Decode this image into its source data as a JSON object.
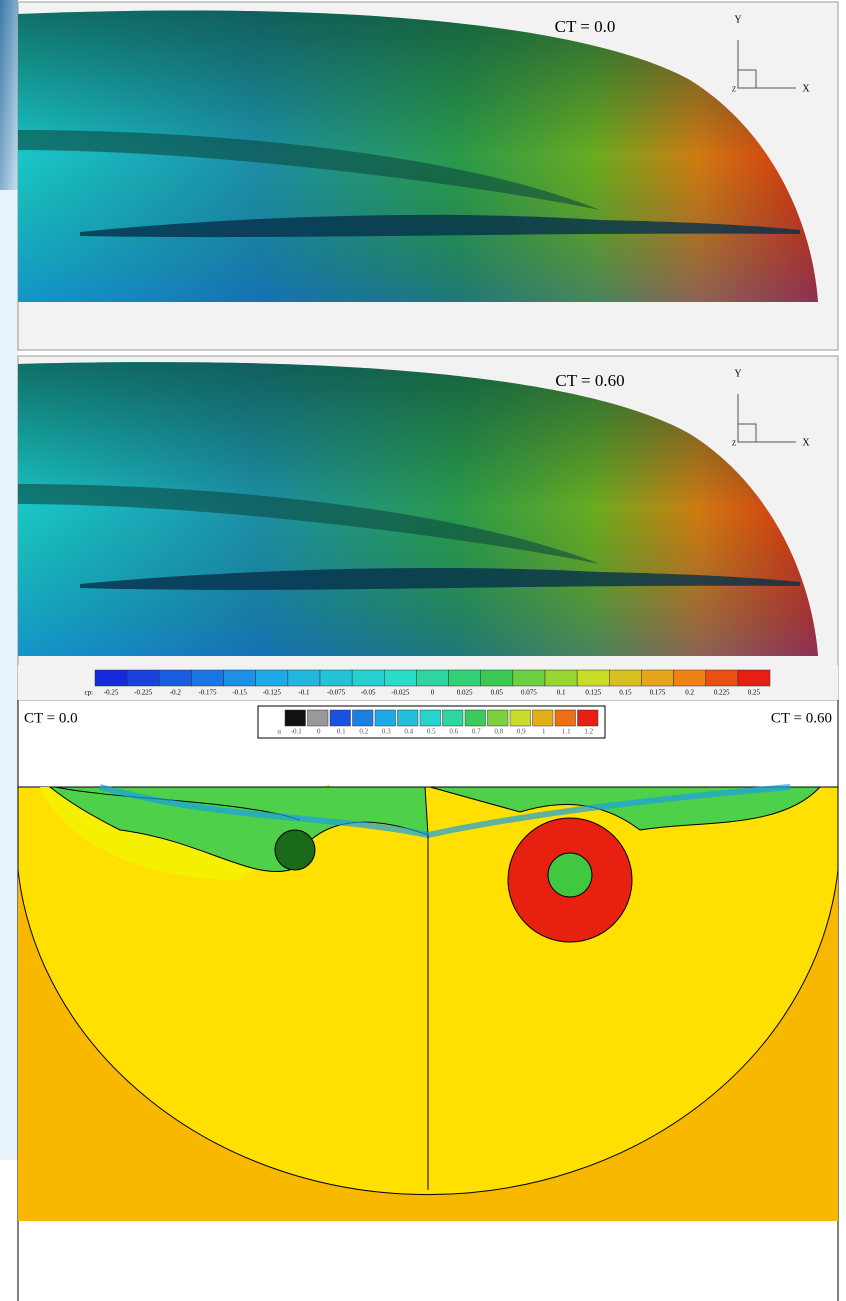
{
  "panels": [
    {
      "label": "CT = 0.0",
      "axes": {
        "y": "Y",
        "x": "X",
        "z": "Z"
      }
    },
    {
      "label": "CT = 0.60",
      "axes": {
        "y": "Y",
        "x": "X",
        "z": "Z"
      }
    }
  ],
  "cp_legend": {
    "name": "cp:",
    "ticks": [
      "-0.25",
      "-0.225",
      "-0.2",
      "-0.175",
      "-0.15",
      "-0.125",
      "-0.1",
      "-0.075",
      "-0.05",
      "-0.025",
      "0",
      "0.025",
      "0.05",
      "0.075",
      "0.1",
      "0.125",
      "0.15",
      "0.175",
      "0.2",
      "0.225",
      "0.25"
    ]
  },
  "alpha_legend": {
    "name": "α",
    "ticks": [
      "-0.1",
      "0",
      "0.1",
      "0.2",
      "0.3",
      "0.4",
      "0.5",
      "0.6",
      "0.7",
      "0.8",
      "0.9",
      "1",
      "1.1",
      "1.2"
    ]
  },
  "compare": {
    "left": "CT = 0.0",
    "right": "CT = 0.60"
  }
}
